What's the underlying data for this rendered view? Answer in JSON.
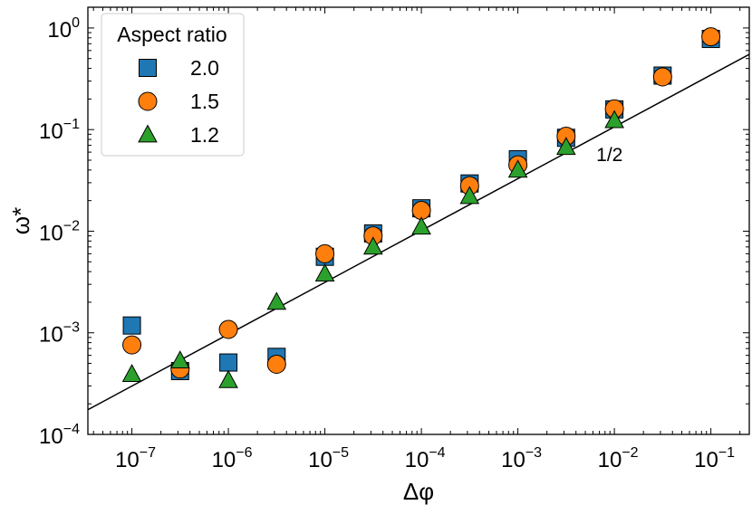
{
  "chart_data": {
    "type": "scatter",
    "xscale": "log",
    "yscale": "log",
    "xlabel": "Δφ",
    "ylabel": "ω*",
    "xlim": [
      3.5e-08,
      0.25
    ],
    "ylim": [
      0.0001,
      1.6
    ],
    "x_tick_exponents": [
      -7,
      -6,
      -5,
      -4,
      -3,
      -2,
      -1
    ],
    "y_tick_exponents": [
      -4,
      -3,
      -2,
      -1,
      0
    ],
    "tick_base": "10",
    "legend": {
      "title": "Aspect ratio",
      "position": "top-left"
    },
    "series": [
      {
        "name": "2.0",
        "marker": "square",
        "color": "#1f77b4",
        "points": [
          [
            1e-07,
            0.00118
          ],
          [
            3.16e-07,
            0.00042
          ],
          [
            1e-06,
            0.00051
          ],
          [
            3.16e-06,
            0.00058
          ],
          [
            1e-05,
            0.0056
          ],
          [
            3.16e-05,
            0.0095
          ],
          [
            0.0001,
            0.0168
          ],
          [
            0.000316,
            0.0295
          ],
          [
            0.001,
            0.051
          ],
          [
            0.00316,
            0.083
          ],
          [
            0.01,
            0.158
          ],
          [
            0.0316,
            0.34
          ],
          [
            0.1,
            0.78
          ]
        ]
      },
      {
        "name": "1.5",
        "marker": "circle",
        "color": "#ff7f0e",
        "points": [
          [
            1e-07,
            0.00076
          ],
          [
            3.16e-07,
            0.00044
          ],
          [
            1e-06,
            0.00108
          ],
          [
            3.16e-06,
            0.00049
          ],
          [
            1e-05,
            0.006
          ],
          [
            3.16e-05,
            0.009
          ],
          [
            0.0001,
            0.016
          ],
          [
            0.000316,
            0.028
          ],
          [
            0.001,
            0.045
          ],
          [
            0.00316,
            0.086
          ],
          [
            0.01,
            0.16
          ],
          [
            0.0316,
            0.33
          ],
          [
            0.1,
            0.82
          ]
        ]
      },
      {
        "name": "1.2",
        "marker": "triangle",
        "color": "#2ca02c",
        "points": [
          [
            1e-07,
            0.00039
          ],
          [
            3.16e-07,
            0.00053
          ],
          [
            1e-06,
            0.00034
          ],
          [
            3.16e-06,
            0.002
          ],
          [
            1e-05,
            0.0038
          ],
          [
            3.16e-05,
            0.007
          ],
          [
            0.0001,
            0.011
          ],
          [
            0.000316,
            0.022
          ],
          [
            0.001,
            0.04
          ],
          [
            0.00316,
            0.067
          ],
          [
            0.01,
            0.123
          ]
        ]
      }
    ],
    "reference_line": {
      "label": "1/2",
      "slope": 0.5,
      "points": [
        [
          3.5e-08,
          0.000175
        ],
        [
          0.25,
          0.55
        ]
      ],
      "label_at": [
        0.0065,
        0.049
      ]
    }
  }
}
